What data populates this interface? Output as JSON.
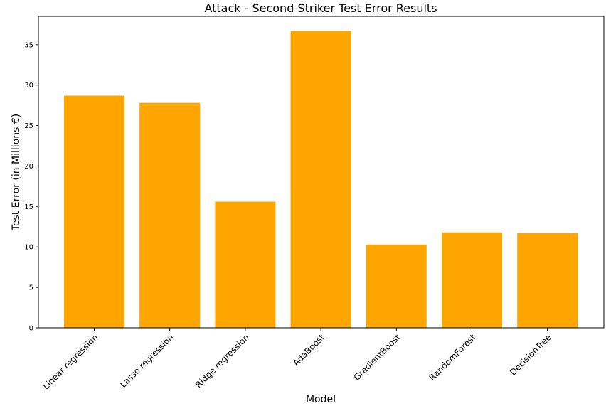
{
  "chart_data": {
    "type": "bar",
    "title": "Attack - Second Striker Test Error Results",
    "xlabel": "Model",
    "ylabel": "Test Error (in Millions €)",
    "categories": [
      "Linear regression",
      "Lasso regression",
      "Ridge regression",
      "AdaBoost",
      "GradientBoost",
      "RandomForest",
      "DecisionTree"
    ],
    "values": [
      28.7,
      27.8,
      15.6,
      36.7,
      10.3,
      11.8,
      11.7
    ],
    "ylim": [
      0,
      38.5
    ],
    "yticks": [
      0,
      5,
      10,
      15,
      20,
      25,
      30,
      35
    ],
    "bar_color": "#ffa500",
    "grid": false,
    "legend": "none"
  }
}
